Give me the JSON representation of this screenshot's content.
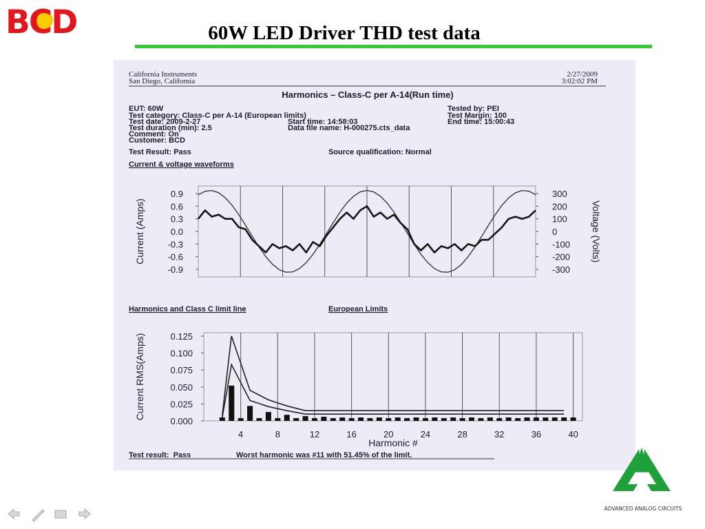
{
  "header": {
    "logo": "BCD",
    "title": "60W LED Driver THD test data"
  },
  "report": {
    "company": "California Instruments",
    "city": "San Diego, California",
    "date": "2/27/2009",
    "time": "3:02:02 PM",
    "title": "Harmonics – Class-C per A-14(Run time)",
    "left_fields": [
      "EUT: 60W",
      "Test category: Class-C per A-14 (European limits)",
      "Test date: 2009-2-27",
      "Test duration (min): 2.5",
      "Comment: On",
      "Customer: BCD"
    ],
    "middle_fields": [
      "Start time: 14:58:03",
      "Data file name: H-000275.cts_data"
    ],
    "right_fields": [
      "Tested by: PEI",
      "Test Margin: 100",
      "End time: 15:00:43"
    ],
    "result": "Test Result: Pass",
    "source": "Source qualification: Normal",
    "waveform_heading": "Current & voltage waveforms",
    "harmonics_heading": "Harmonics and Class C limit line",
    "limits_heading": "European Limits",
    "footer_result": "Test result:  Pass",
    "footer_worst": "Worst harmonic was #11 with 51.45% of the limit."
  },
  "chart_data": [
    {
      "type": "line",
      "ylabel": "Current (Amps)",
      "y2label": "Voltage (Volts)",
      "x": [
        0,
        2,
        4,
        6,
        8,
        10,
        12,
        14,
        16,
        18,
        20,
        22,
        24,
        26,
        28,
        30,
        32,
        34,
        36,
        38,
        40,
        42,
        44,
        46,
        48,
        50,
        52,
        54,
        56,
        58,
        60,
        62,
        64,
        66,
        68,
        70,
        72,
        74,
        76,
        78,
        80,
        82,
        84,
        86,
        88,
        90,
        92,
        94,
        96,
        98,
        100
      ],
      "xlim": [
        0,
        100
      ],
      "ylim": [
        -1.08,
        1.08
      ],
      "yticks": [
        0.9,
        0.6,
        0.3,
        {
          "value": 0,
          "label": "0.0"
        },
        -0.3,
        -0.6,
        -0.9
      ],
      "y2lim": [
        -360,
        360
      ],
      "y2ticks": [
        300,
        200,
        100,
        0,
        -100,
        -200,
        -300
      ],
      "grid": true,
      "series": [
        {
          "color": "#151515",
          "width": 2.6,
          "values": [
            0.3,
            0.5,
            0.35,
            0.4,
            0.3,
            0.3,
            0.1,
            0.05,
            -0.2,
            -0.35,
            -0.5,
            -0.3,
            -0.4,
            -0.35,
            -0.45,
            -0.3,
            -0.5,
            -0.25,
            -0.35,
            -0.1,
            0.1,
            0.3,
            0.45,
            0.3,
            0.5,
            0.6,
            0.35,
            0.45,
            0.3,
            0.4,
            0.2,
            0.05,
            -0.3,
            -0.45,
            -0.3,
            -0.5,
            -0.35,
            -0.4,
            -0.3,
            -0.45,
            -0.3,
            -0.35,
            -0.2,
            -0.2,
            -0.05,
            0.1,
            0.3,
            0.35,
            0.3,
            0.35,
            0.5
          ]
        },
        {
          "color": "#3a3a3a",
          "width": 1.4,
          "axis": "y2",
          "values": [
            290,
            318,
            324,
            307,
            267,
            208,
            133,
            49,
            -38,
            -123,
            -199,
            -260,
            -303,
            -323,
            -320,
            -294,
            -247,
            -181,
            -103,
            -17,
            70,
            152,
            224,
            278,
            313,
            325,
            313,
            279,
            224,
            153,
            71,
            -16,
            -102,
            -181,
            -246,
            -294,
            -320,
            -323,
            -303,
            -261,
            -200,
            -124,
            -40,
            48,
            132,
            207,
            266,
            306,
            324,
            319,
            290
          ]
        }
      ]
    },
    {
      "type": "bar",
      "xlabel": "Harmonic #",
      "ylabel": "Current RMS(Amps)",
      "xlim": [
        0,
        41
      ],
      "xticks": [
        4,
        8,
        12,
        16,
        20,
        24,
        28,
        32,
        36,
        40
      ],
      "ylim": [
        0,
        0.13
      ],
      "yticks": [
        {
          "value": 0.125,
          "label": "0.125"
        },
        {
          "value": 0.1,
          "label": "0.100"
        },
        {
          "value": 0.075,
          "label": "0.075"
        },
        {
          "value": 0.05,
          "label": "0.050"
        },
        {
          "value": 0.025,
          "label": "0.025"
        },
        {
          "value": 0,
          "label": "0.000"
        }
      ],
      "grid": true,
      "series": [
        {
          "type": "bar",
          "color": "#111111",
          "x": [
            2,
            3,
            4,
            5,
            6,
            7,
            8,
            9,
            10,
            11,
            12,
            13,
            14,
            15,
            16,
            17,
            18,
            19,
            20,
            21,
            22,
            23,
            24,
            25,
            26,
            27,
            28,
            29,
            30,
            31,
            32,
            33,
            34,
            35,
            36,
            37,
            38,
            39,
            40
          ],
          "values": [
            0.005,
            0.052,
            0.004,
            0.022,
            0.004,
            0.013,
            0.004,
            0.009,
            0.004,
            0.007,
            0.004,
            0.006,
            0.004,
            0.005,
            0.004,
            0.005,
            0.004,
            0.005,
            0.004,
            0.005,
            0.004,
            0.005,
            0.004,
            0.005,
            0.004,
            0.005,
            0.004,
            0.005,
            0.004,
            0.005,
            0.004,
            0.005,
            0.004,
            0.005,
            0.005,
            0.005,
            0.005,
            0.005,
            0.005
          ]
        },
        {
          "type": "line",
          "color": "#222222",
          "x": [
            2,
            3,
            5,
            7,
            9,
            11,
            13,
            15,
            17,
            19,
            21,
            23,
            25,
            27,
            29,
            31,
            33,
            35,
            37,
            39
          ],
          "values": [
            0.008,
            0.125,
            0.045,
            0.031,
            0.022,
            0.015,
            0.015,
            0.015,
            0.015,
            0.015,
            0.015,
            0.015,
            0.015,
            0.015,
            0.015,
            0.015,
            0.015,
            0.015,
            0.015,
            0.015
          ]
        },
        {
          "type": "line",
          "color": "#222222",
          "x": [
            2,
            3,
            5,
            7,
            9,
            11,
            13,
            15,
            17,
            19,
            21,
            23,
            25,
            27,
            29,
            31,
            33,
            35,
            37,
            39
          ],
          "values": [
            0.005,
            0.083,
            0.03,
            0.021,
            0.015,
            0.01,
            0.01,
            0.01,
            0.01,
            0.01,
            0.01,
            0.01,
            0.01,
            0.01,
            0.01,
            0.01,
            0.01,
            0.01,
            0.01,
            0.01
          ]
        }
      ]
    }
  ],
  "footer_logo": "ADVANCED ANALOG CIRCUITS"
}
